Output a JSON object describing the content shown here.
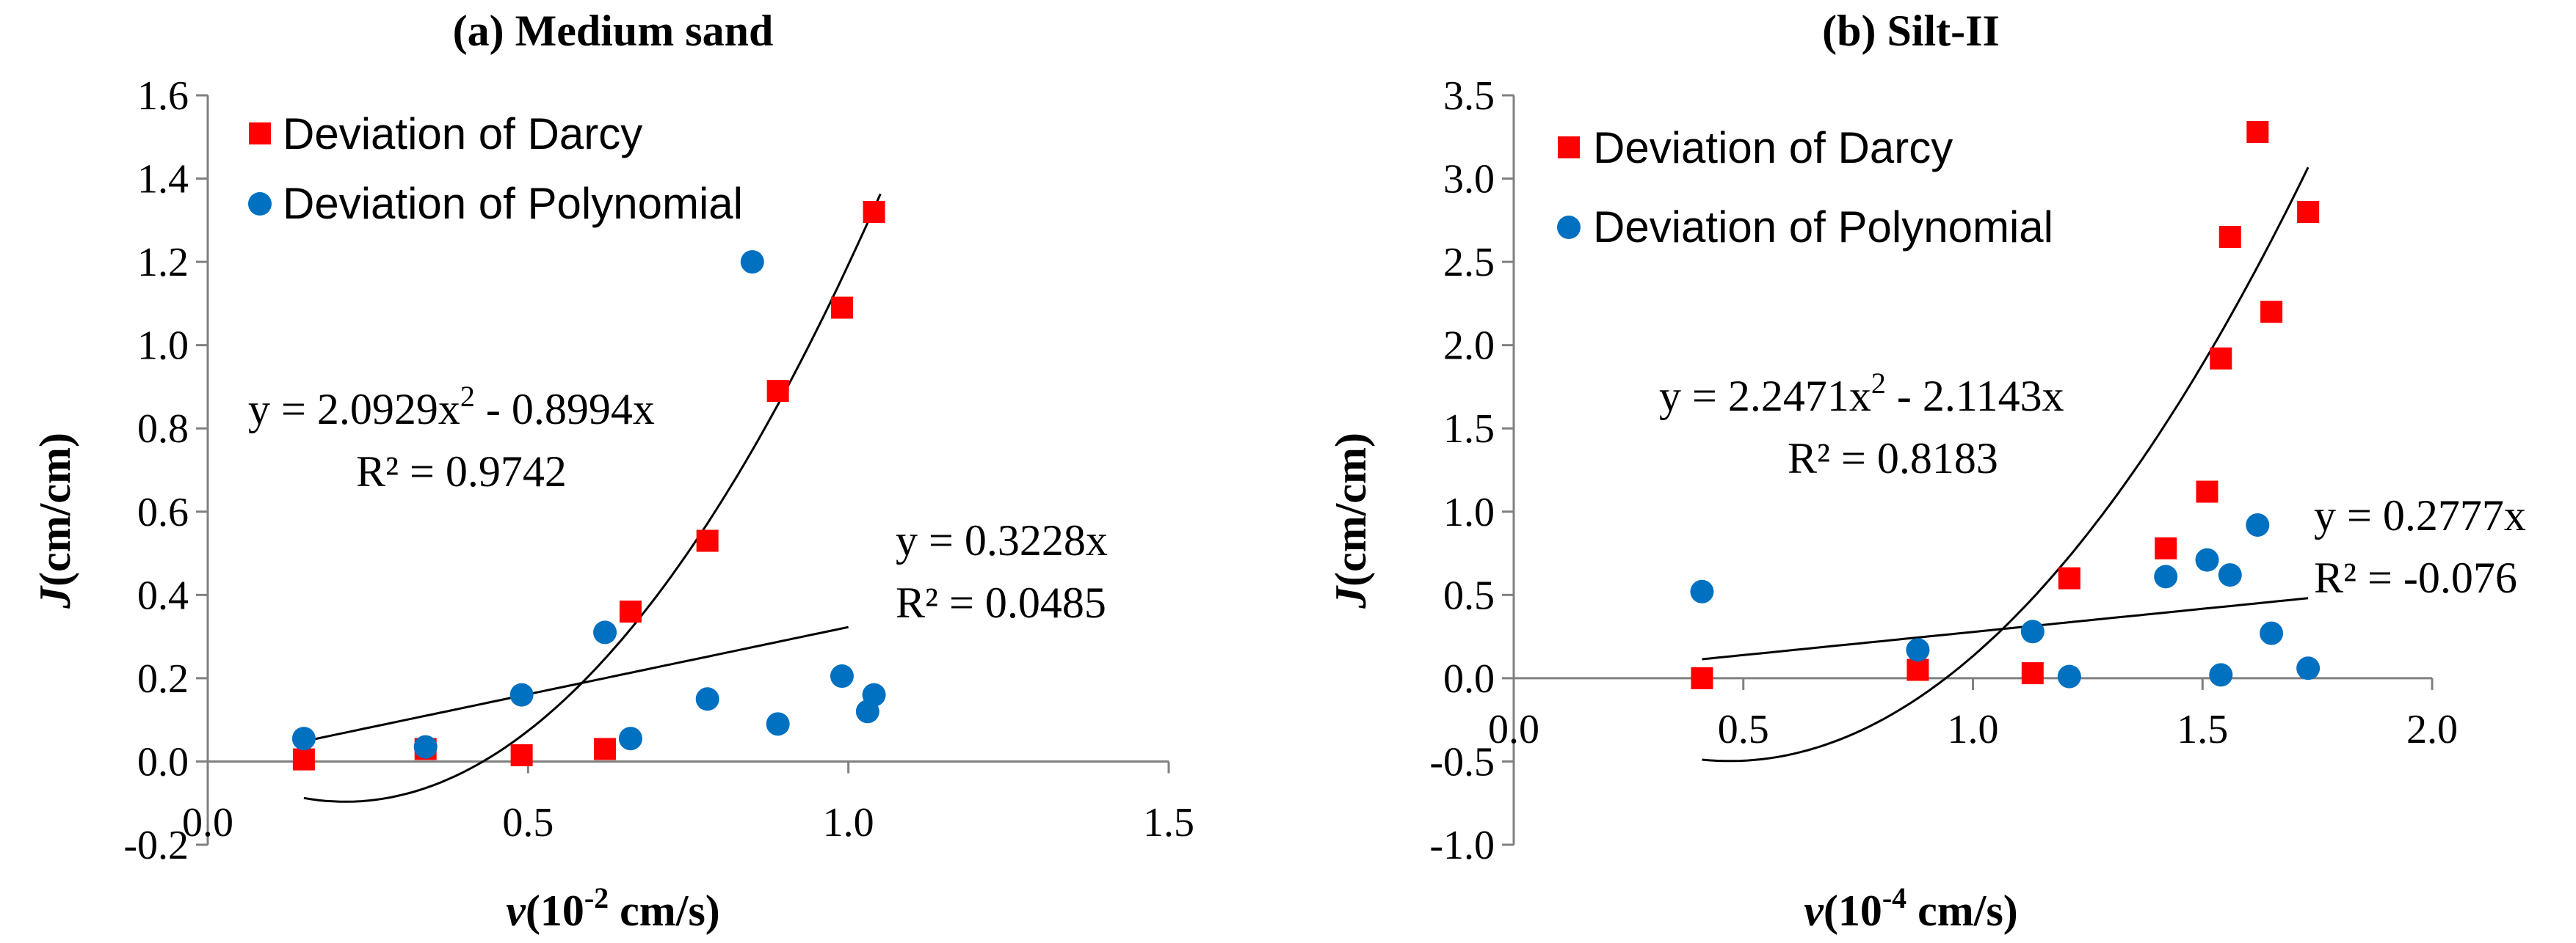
{
  "chart_data": [
    {
      "type": "scatter",
      "title": "(a) Medium sand",
      "xlabel": "v(10-2 cm/s)",
      "xlabel_main": "v",
      "xlabel_unit_pre": "(10",
      "xlabel_exp": "-2",
      "xlabel_unit_post": " cm/s)",
      "ylabel": "J(cm/cm)",
      "ylabel_main": "J",
      "ylabel_unit": "(cm/cm)",
      "xlim": [
        0,
        1.5
      ],
      "ylim": [
        -0.2,
        1.6
      ],
      "x_axis_at": 0,
      "legend_position": "top-left",
      "xticks": [
        {
          "value": 0.0,
          "label": "0.0"
        },
        {
          "value": 0.5,
          "label": "0.5"
        },
        {
          "value": 1.0,
          "label": "1.0"
        },
        {
          "value": 1.5,
          "label": "1.5"
        }
      ],
      "yticks": [
        {
          "value": -0.2,
          "label": "-0.2"
        },
        {
          "value": 0.0,
          "label": "0.0"
        },
        {
          "value": 0.2,
          "label": "0.2"
        },
        {
          "value": 0.4,
          "label": "0.4"
        },
        {
          "value": 0.6,
          "label": "0.6"
        },
        {
          "value": 0.8,
          "label": "0.8"
        },
        {
          "value": 1.0,
          "label": "1.0"
        },
        {
          "value": 1.2,
          "label": "1.2"
        },
        {
          "value": 1.4,
          "label": "1.4"
        },
        {
          "value": 1.6,
          "label": "1.6"
        }
      ],
      "series": [
        {
          "name": "Deviation of Darcy",
          "marker": "square",
          "color": "#ff0000",
          "points": [
            [
              0.15,
              0.005
            ],
            [
              0.34,
              0.03
            ],
            [
              0.49,
              0.015
            ],
            [
              0.62,
              0.03
            ],
            [
              0.66,
              0.36
            ],
            [
              0.78,
              0.53
            ],
            [
              0.89,
              0.89
            ],
            [
              0.99,
              1.09
            ],
            [
              1.04,
              1.32
            ]
          ]
        },
        {
          "name": "Deviation of Polynomial",
          "marker": "circle",
          "color": "#0070c0",
          "points": [
            [
              0.15,
              0.055
            ],
            [
              0.34,
              0.035
            ],
            [
              0.49,
              0.16
            ],
            [
              0.62,
              0.31
            ],
            [
              0.66,
              0.055
            ],
            [
              0.78,
              0.15
            ],
            [
              0.85,
              1.2
            ],
            [
              0.89,
              0.09
            ],
            [
              0.99,
              0.205
            ],
            [
              1.03,
              0.12
            ],
            [
              1.04,
              0.16
            ]
          ]
        }
      ],
      "trendlines": [
        {
          "kind": "quadratic",
          "a": 2.0929,
          "b": -0.8994,
          "c": 0,
          "x_range": [
            0.15,
            1.05
          ],
          "label": "y = 2.0929x",
          "label_sup": "2",
          "label_tail": " - 0.8994x",
          "r2": "R² = 0.9742"
        },
        {
          "kind": "linear",
          "a": 0.3228,
          "x_range": [
            0.15,
            1.0
          ],
          "label": "y = 0.3228x",
          "r2": "R² = 0.0485"
        }
      ]
    },
    {
      "type": "scatter",
      "title": "(b) Silt-II",
      "xlabel": "v(10-4 cm/s)",
      "xlabel_main": "v",
      "xlabel_unit_pre": "(10",
      "xlabel_exp": "-4",
      "xlabel_unit_post": " cm/s)",
      "ylabel": "J(cm/cm)",
      "ylabel_main": "J",
      "ylabel_unit": "(cm/cm)",
      "xlim": [
        0,
        2.0
      ],
      "ylim": [
        -1.0,
        3.5
      ],
      "x_axis_at": 0,
      "legend_position": "top-left",
      "xticks": [
        {
          "value": 0.0,
          "label": "0.0"
        },
        {
          "value": 0.5,
          "label": "0.5"
        },
        {
          "value": 1.0,
          "label": "1.0"
        },
        {
          "value": 1.5,
          "label": "1.5"
        },
        {
          "value": 2.0,
          "label": "2.0"
        }
      ],
      "yticks": [
        {
          "value": -1.0,
          "label": "-1.0"
        },
        {
          "value": -0.5,
          "label": "-0.5"
        },
        {
          "value": 0.0,
          "label": "0.0"
        },
        {
          "value": 0.5,
          "label": "0.5"
        },
        {
          "value": 1.0,
          "label": "1.0"
        },
        {
          "value": 1.5,
          "label": "1.5"
        },
        {
          "value": 2.0,
          "label": "2.0"
        },
        {
          "value": 2.5,
          "label": "2.5"
        },
        {
          "value": 3.0,
          "label": "3.0"
        },
        {
          "value": 3.5,
          "label": "3.5"
        }
      ],
      "series": [
        {
          "name": "Deviation of Darcy",
          "marker": "square",
          "color": "#ff0000",
          "points": [
            [
              0.41,
              0.0
            ],
            [
              0.88,
              0.05
            ],
            [
              1.13,
              0.03
            ],
            [
              1.21,
              0.6
            ],
            [
              1.42,
              0.78
            ],
            [
              1.51,
              1.12
            ],
            [
              1.54,
              1.92
            ],
            [
              1.56,
              2.65
            ],
            [
              1.62,
              3.28
            ],
            [
              1.65,
              2.2
            ],
            [
              1.73,
              2.8
            ]
          ]
        },
        {
          "name": "Deviation of Polynomial",
          "marker": "circle",
          "color": "#0070c0",
          "points": [
            [
              0.41,
              0.52
            ],
            [
              0.88,
              0.17
            ],
            [
              1.13,
              0.28
            ],
            [
              1.21,
              0.01
            ],
            [
              1.42,
              0.61
            ],
            [
              1.51,
              0.71
            ],
            [
              1.54,
              0.02
            ],
            [
              1.56,
              0.62
            ],
            [
              1.62,
              0.92
            ],
            [
              1.65,
              0.27
            ],
            [
              1.73,
              0.06
            ]
          ]
        }
      ],
      "trendlines": [
        {
          "kind": "quadratic",
          "a": 2.2471,
          "b": -2.1143,
          "c": 0,
          "x_range": [
            0.41,
            1.73
          ],
          "label": "y = 2.2471x",
          "label_sup": "2",
          "label_tail": " - 2.1143x",
          "r2": "R² = 0.8183"
        },
        {
          "kind": "linear",
          "a": 0.2777,
          "x_range": [
            0.41,
            1.73
          ],
          "label": "y = 0.2777x",
          "r2": "R² = -0.076"
        }
      ]
    }
  ]
}
